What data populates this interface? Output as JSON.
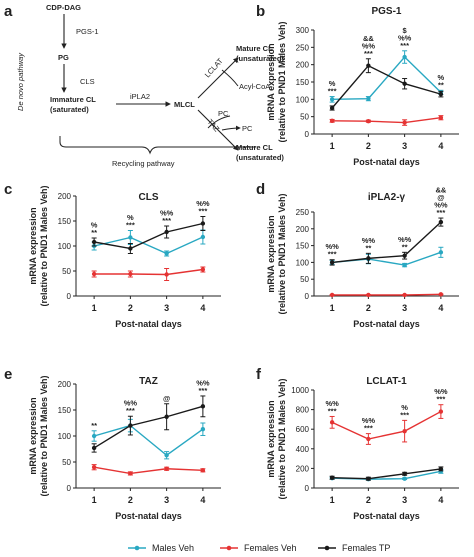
{
  "colors": {
    "males_veh": "#29a8c2",
    "females_veh": "#e53333",
    "females_tp": "#1a1a1a",
    "axis": "#222222"
  },
  "diagram": {
    "panel_label": "a",
    "cdp_dag": "CDP-DAG",
    "pgs1": "PGS-1",
    "pg": "PG",
    "cls": "CLS",
    "de_novo": "De novo pathway",
    "immature_cl_1": "Immature CL",
    "immature_cl_2": "(saturated)",
    "iplA2": "iPLA2",
    "mlcl": "MLCL",
    "lclat": "LCLAT",
    "taz": "TAZ",
    "acyl_coa": "Acyl-CoA",
    "pc": "PC",
    "mature_cl_top_1": "Mature CL",
    "mature_cl_top_2": "(unsaturated)",
    "mature_cl_bot_1": "Mature CL",
    "mature_cl_bot_2": "(unsaturated)",
    "recycling": "Recycling pathway"
  },
  "legend": {
    "males_veh": "Males Veh",
    "females_veh": "Females Veh",
    "females_tp": "Females TP"
  },
  "chart_data": [
    {
      "type": "line",
      "panel": "b",
      "title": "PGS-1",
      "xlabel": "Post-natal days",
      "ylabel": "mRNA expression",
      "ylabel2": "(relative to PND1 Males Veh)",
      "x": [
        1,
        2,
        3,
        4
      ],
      "ylim": [
        0,
        300
      ],
      "yticks": [
        0,
        50,
        100,
        150,
        200,
        250,
        300
      ],
      "series": [
        {
          "name": "Males Veh",
          "values": [
            100,
            102,
            222,
            120
          ],
          "err": [
            8,
            6,
            18,
            6
          ]
        },
        {
          "name": "Females Veh",
          "values": [
            38,
            37,
            33,
            47
          ],
          "err": [
            4,
            3,
            8,
            6
          ]
        },
        {
          "name": "Females TP",
          "values": [
            75,
            197,
            145,
            115
          ],
          "err": [
            6,
            20,
            15,
            8
          ]
        }
      ],
      "annotations": [
        {
          "x": 1,
          "lines": [
            "%",
            "***"
          ]
        },
        {
          "x": 2,
          "lines": [
            "&&",
            "%%",
            "***"
          ]
        },
        {
          "x": 3,
          "lines": [
            "$",
            "%%",
            "***"
          ]
        },
        {
          "x": 4,
          "lines": [
            "%",
            "**"
          ]
        }
      ]
    },
    {
      "type": "line",
      "panel": "c",
      "title": "CLS",
      "xlabel": "Post-natal days",
      "ylabel": "mRNA expression",
      "ylabel2": "(relative to PND1 Males Veh)",
      "x": [
        1,
        2,
        3,
        4
      ],
      "ylim": [
        0,
        200
      ],
      "yticks": [
        0,
        50,
        100,
        150,
        200
      ],
      "series": [
        {
          "name": "Males Veh",
          "values": [
            100,
            117,
            85,
            118
          ],
          "err": [
            8,
            14,
            5,
            14
          ]
        },
        {
          "name": "Females Veh",
          "values": [
            44,
            44,
            43,
            53
          ],
          "err": [
            6,
            6,
            12,
            5
          ]
        },
        {
          "name": "Females TP",
          "values": [
            108,
            95,
            128,
            145
          ],
          "err": [
            8,
            10,
            12,
            14
          ]
        }
      ],
      "annotations": [
        {
          "x": 1,
          "lines": [
            "%",
            "**"
          ]
        },
        {
          "x": 2,
          "lines": [
            "%",
            "***"
          ]
        },
        {
          "x": 3,
          "lines": [
            "%%",
            "***"
          ]
        },
        {
          "x": 4,
          "lines": [
            "%%",
            "***"
          ]
        }
      ]
    },
    {
      "type": "line",
      "panel": "d",
      "title": "iPLA2-γ",
      "xlabel": "Post-natal days",
      "ylabel": "mRNA expression",
      "ylabel2": "(relative to PND1 Males Veh)",
      "x": [
        1,
        2,
        3,
        4
      ],
      "ylim": [
        0,
        250
      ],
      "yticks": [
        0,
        50,
        100,
        150,
        200,
        250
      ],
      "series": [
        {
          "name": "Males Veh",
          "values": [
            100,
            110,
            92,
            130
          ],
          "err": [
            6,
            14,
            5,
            15
          ]
        },
        {
          "name": "Females Veh",
          "values": [
            3,
            3,
            3,
            5
          ],
          "err": [
            1,
            1,
            1,
            1
          ]
        },
        {
          "name": "Females TP",
          "values": [
            100,
            112,
            120,
            220
          ],
          "err": [
            8,
            15,
            10,
            12
          ]
        }
      ],
      "annotations": [
        {
          "x": 1,
          "lines": [
            "%%",
            "***"
          ]
        },
        {
          "x": 2,
          "lines": [
            "%%",
            "**"
          ]
        },
        {
          "x": 3,
          "lines": [
            "%%",
            "**"
          ]
        },
        {
          "x": 4,
          "lines": [
            "&&",
            "@",
            "%%",
            "***"
          ]
        }
      ]
    },
    {
      "type": "line",
      "panel": "e",
      "title": "TAZ",
      "xlabel": "Post-natal days",
      "ylabel": "mRNA expression",
      "ylabel2": "(relative to PND1 Males Veh)",
      "x": [
        1,
        2,
        3,
        4
      ],
      "ylim": [
        0,
        200
      ],
      "yticks": [
        0,
        50,
        100,
        150,
        200
      ],
      "series": [
        {
          "name": "Males Veh",
          "values": [
            100,
            120,
            63,
            113
          ],
          "err": [
            10,
            12,
            7,
            12
          ]
        },
        {
          "name": "Females Veh",
          "values": [
            40,
            28,
            37,
            34
          ],
          "err": [
            5,
            3,
            3,
            3
          ]
        },
        {
          "name": "Females TP",
          "values": [
            77,
            120,
            137,
            157
          ],
          "err": [
            8,
            18,
            25,
            20
          ]
        }
      ],
      "annotations": [
        {
          "x": 1,
          "lines": [
            "**"
          ]
        },
        {
          "x": 2,
          "lines": [
            "%%",
            "***"
          ]
        },
        {
          "x": 3,
          "lines": [
            "@"
          ]
        },
        {
          "x": 4,
          "lines": [
            "%%",
            "***"
          ]
        }
      ]
    },
    {
      "type": "line",
      "panel": "f",
      "title": "LCLAT-1",
      "xlabel": "Post-natal days",
      "ylabel": "mRNA expression",
      "ylabel2": "(relative to PND1 Males Veh)",
      "x": [
        1,
        2,
        3,
        4
      ],
      "ylim": [
        0,
        1000
      ],
      "yticks": [
        0,
        200,
        400,
        600,
        800,
        1000
      ],
      "series": [
        {
          "name": "Males Veh",
          "values": [
            100,
            90,
            95,
            170
          ],
          "err": [
            10,
            10,
            8,
            20
          ]
        },
        {
          "name": "Females Veh",
          "values": [
            670,
            500,
            580,
            780
          ],
          "err": [
            60,
            55,
            110,
            70
          ]
        },
        {
          "name": "Females TP",
          "values": [
            105,
            95,
            145,
            195
          ],
          "err": [
            15,
            15,
            15,
            20
          ]
        }
      ],
      "annotations": [
        {
          "x": 1,
          "lines": [
            "%%",
            "***"
          ]
        },
        {
          "x": 2,
          "lines": [
            "%%",
            "***"
          ]
        },
        {
          "x": 3,
          "lines": [
            "%",
            "***"
          ]
        },
        {
          "x": 4,
          "lines": [
            "%%",
            "***"
          ]
        }
      ]
    }
  ]
}
